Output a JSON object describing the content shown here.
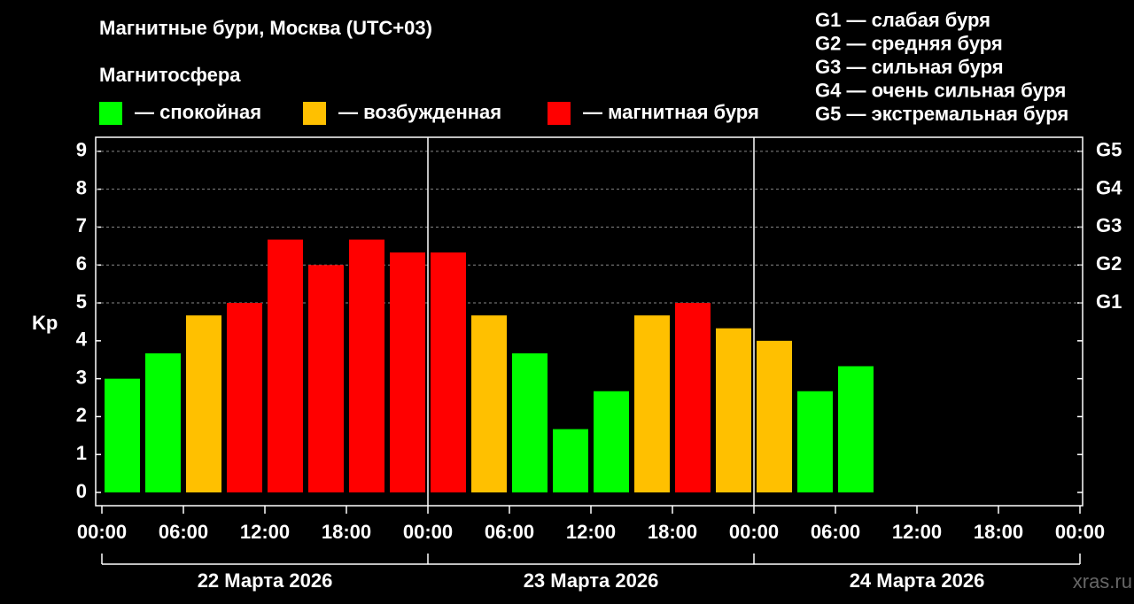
{
  "chart_data": {
    "type": "bar",
    "title": "Магнитные бури, Москва (UTC+03)",
    "legend_title": "Магнитосфера",
    "legend": [
      {
        "name": "— спокойная",
        "color": "#00ff00"
      },
      {
        "name": "— возбужденная",
        "color": "#ffc000"
      },
      {
        "name": "— магнитная буря",
        "color": "#ff0000"
      }
    ],
    "storm_scale": [
      "G1 — слабая буря",
      "G2 — средняя буря",
      "G3 — сильная буря",
      "G4 — очень сильная буря",
      "G5 — экстремальная буря"
    ],
    "y_label": "Kp",
    "x": [
      0,
      3,
      6,
      9,
      12,
      15,
      18,
      21,
      24,
      27,
      30,
      33,
      36,
      39,
      42,
      45,
      48,
      51,
      54
    ],
    "values": [
      3.0,
      3.67,
      4.67,
      5.0,
      6.67,
      6.0,
      6.67,
      6.33,
      6.33,
      4.67,
      3.67,
      1.67,
      2.67,
      4.67,
      5.0,
      4.33,
      4.0,
      2.67,
      3.33
    ],
    "colors": [
      "#00ff00",
      "#00ff00",
      "#ffc000",
      "#ff0000",
      "#ff0000",
      "#ff0000",
      "#ff0000",
      "#ff0000",
      "#ff0000",
      "#ffc000",
      "#00ff00",
      "#00ff00",
      "#00ff00",
      "#ffc000",
      "#ff0000",
      "#ffc000",
      "#ffc000",
      "#00ff00",
      "#00ff00"
    ],
    "xlim": [
      0,
      72
    ],
    "xticks": [
      {
        "value": 0,
        "label": "00:00"
      },
      {
        "value": 6,
        "label": "06:00"
      },
      {
        "value": 12,
        "label": "12:00"
      },
      {
        "value": 18,
        "label": "18:00"
      },
      {
        "value": 24,
        "label": "00:00"
      },
      {
        "value": 30,
        "label": "06:00"
      },
      {
        "value": 36,
        "label": "12:00"
      },
      {
        "value": 42,
        "label": "18:00"
      },
      {
        "value": 48,
        "label": "00:00"
      },
      {
        "value": 54,
        "label": "06:00"
      },
      {
        "value": 60,
        "label": "12:00"
      },
      {
        "value": 66,
        "label": "18:00"
      },
      {
        "value": 72,
        "label": "00:00"
      }
    ],
    "days": [
      "22 Марта 2026",
      "23 Марта 2026",
      "24 Марта 2026"
    ],
    "ylim": [
      -0.35,
      9.37
    ],
    "yticks": [
      0,
      1,
      2,
      3,
      4,
      5,
      6,
      7,
      8,
      9
    ],
    "y2lim": [
      -0.35,
      9.37
    ],
    "y2ticks": [
      {
        "value": 5,
        "label": "G1"
      },
      {
        "value": 6,
        "label": "G2"
      },
      {
        "value": 7,
        "label": "G3"
      },
      {
        "value": 8,
        "label": "G4"
      },
      {
        "value": 9,
        "label": "G5"
      }
    ],
    "grid": true,
    "watermark": "xras.ru"
  }
}
